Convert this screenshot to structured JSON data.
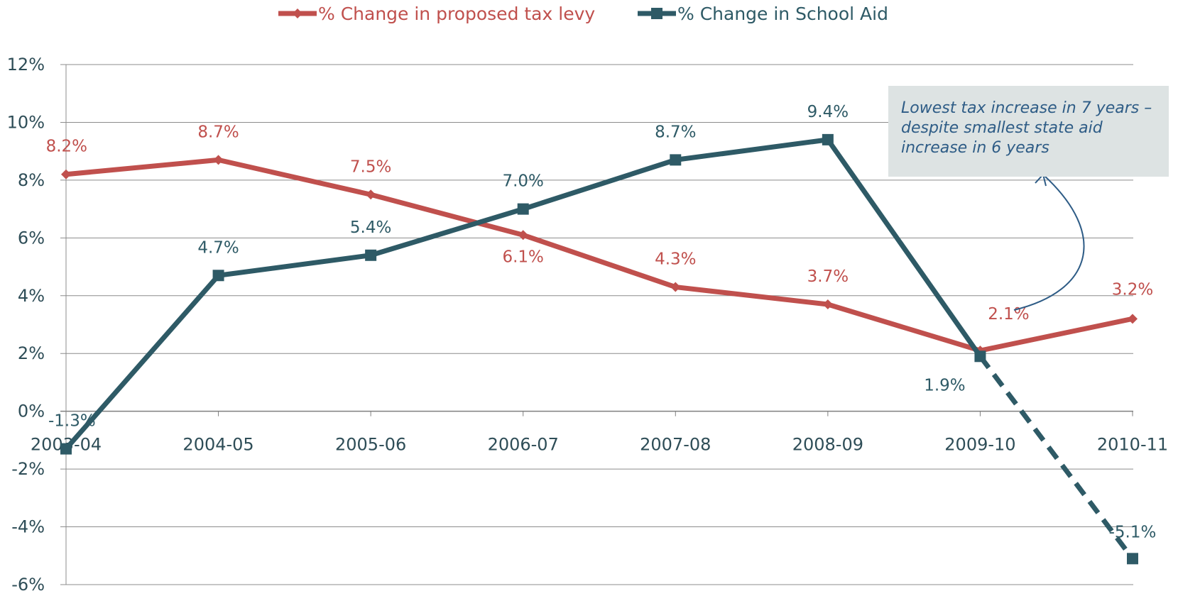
{
  "chart_data": {
    "type": "line",
    "categories": [
      "2003-04",
      "2004-05",
      "2005-06",
      "2006-07",
      "2007-08",
      "2008-09",
      "2009-10",
      "2010-11"
    ],
    "series": [
      {
        "name": "% Change in proposed tax levy",
        "color": "#c0504d",
        "marker": "diamond",
        "values": [
          8.2,
          8.7,
          7.5,
          6.1,
          4.3,
          3.7,
          2.1,
          3.2
        ],
        "labels": [
          "8.2%",
          "8.7%",
          "7.5%",
          "6.1%",
          "4.3%",
          "3.7%",
          "2.1%",
          "3.2%"
        ]
      },
      {
        "name": "% Change in School Aid",
        "color": "#2e5a66",
        "marker": "square",
        "values": [
          -1.3,
          4.7,
          5.4,
          7.0,
          8.7,
          9.4,
          1.9,
          -5.1
        ],
        "labels": [
          "-1.3%",
          "4.7%",
          "5.4%",
          "7.0%",
          "8.7%",
          "9.4%",
          "1.9%",
          "-5.1%"
        ],
        "dashed_last_segment": true
      }
    ],
    "yticks": [
      "12%",
      "10%",
      "8%",
      "6%",
      "4%",
      "2%",
      "0%",
      "-2%",
      "-4%",
      "-6%"
    ],
    "ylim": [
      -6,
      12
    ],
    "grid": true,
    "legend": "top-center",
    "annotation": "Lowest tax increase in 7 years –  despite smallest state aid increase in 6 years",
    "annotation_color": "#2e5c86"
  }
}
